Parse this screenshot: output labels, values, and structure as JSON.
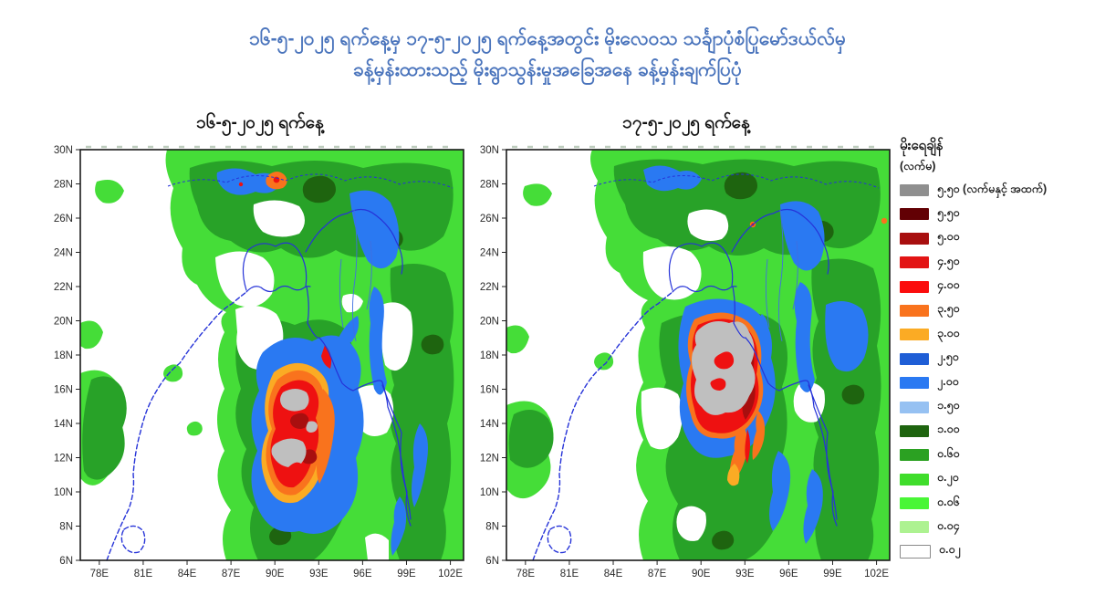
{
  "page": {
    "background": "#ffffff"
  },
  "title": {
    "line1": "၁၆-၅-၂၀၂၅ ရက်နေ့မှ ၁၇-၅-၂၀၂၅ ရက်နေ့အတွင်း မိုးလေဝသ သင်္ချာပုံစံပြုမော်ဒယ်လ်မှ",
    "line2": "ခန့်မှန်းထားသည့် မိုးရွာသွန်းမှုအခြေအနေ ခန့်မှန်းချက်ပြပုံ",
    "color": "#4a74bc"
  },
  "maps": [
    {
      "title": "၁၆-၅-၂၀၂၅ ရက်နေ့"
    },
    {
      "title": "၁၇-၅-၂၀၂၅ ရက်နေ့"
    }
  ],
  "axes": {
    "x_tick_labels": [
      "78E",
      "81E",
      "84E",
      "87E",
      "90E",
      "93E",
      "96E",
      "99E",
      "102E"
    ],
    "y_tick_labels": [
      "30N",
      "28N",
      "26N",
      "24N",
      "22N",
      "20N",
      "18N",
      "16N",
      "14N",
      "12N",
      "10N",
      "8N",
      "6N"
    ]
  },
  "legend": {
    "title_line1": "မိုးရေချိန်",
    "title_line2": "(လက်မ)",
    "items": [
      {
        "label": "၅.၅၀ (လက်မနှင့် အထက်)",
        "value": "5.50+",
        "color": "#8f8f8f"
      },
      {
        "label": "၅.၅၀",
        "value": "5.50",
        "color": "#620004"
      },
      {
        "label": "၅.၀၀",
        "value": "5.00",
        "color": "#a80f0f"
      },
      {
        "label": "၄.၅၀",
        "value": "4.50",
        "color": "#e31414"
      },
      {
        "label": "၄.၀၀",
        "value": "4.00",
        "color": "#fb0d0d"
      },
      {
        "label": "၃.၅၀",
        "value": "3.50",
        "color": "#f9731d"
      },
      {
        "label": "၃.၀၀",
        "value": "3.00",
        "color": "#fbab24"
      },
      {
        "label": "၂.၅၀",
        "value": "2.50",
        "color": "#1f5ed6"
      },
      {
        "label": "၂.၀၀",
        "value": "2.00",
        "color": "#2a79f2"
      },
      {
        "label": "၁.၅၀",
        "value": "1.50",
        "color": "#96c1f2"
      },
      {
        "label": "၁.၀၀",
        "value": "1.00",
        "color": "#1e640f"
      },
      {
        "label": "၀.၆၀",
        "value": "0.60",
        "color": "#2ba122"
      },
      {
        "label": "၀.၂၀",
        "value": "0.20",
        "color": "#3fdd2b"
      },
      {
        "label": "၀.၀၆",
        "value": "0.06",
        "color": "#49f636"
      },
      {
        "label": "၀.၀၄",
        "value": "0.04",
        "color": "#adf291"
      },
      {
        "label": "၀.၀၂",
        "value": "0.02",
        "color": "#ffffff",
        "border": true
      }
    ]
  },
  "palette": {
    "map_gray": "#bfbfbf",
    "maroon": "#620004",
    "darkred": "#a80f0f",
    "red": "#ee1111",
    "orange": "#f9731d",
    "amber": "#fbab24",
    "blue": "#1f5ed6",
    "blue2": "#2a79f2",
    "lightblue": "#96c1f2",
    "darkgreen": "#1e640f",
    "green": "#28a228",
    "green2": "#45dd38",
    "coast": "#2633d8",
    "river": "#3f6fe0"
  },
  "chart_data": [
    {
      "type": "heatmap",
      "title": "၁၆-၅-၂၀၂၅ ရက်နေ့",
      "variable": "forecast rainfall",
      "units": "inches (လက်မ)",
      "x_ticks": [
        "78E",
        "81E",
        "84E",
        "87E",
        "90E",
        "93E",
        "96E",
        "99E",
        "102E"
      ],
      "y_ticks": [
        "30N",
        "28N",
        "26N",
        "24N",
        "22N",
        "20N",
        "18N",
        "16N",
        "14N",
        "12N",
        "10N",
        "8N",
        "6N"
      ],
      "lon_range_deg_e": [
        76.7,
        102.9
      ],
      "lat_range_deg_n": [
        6,
        30
      ],
      "levels_inches": [
        0.02,
        0.04,
        0.06,
        0.2,
        0.6,
        1.0,
        1.5,
        2.0,
        2.5,
        3.0,
        3.5,
        4.0,
        4.5,
        5.0,
        5.5
      ],
      "legend_position": "right",
      "grid": false,
      "features": [
        {
          "name": "storm-core",
          "center_lon_e": 91.5,
          "center_lat_n": 13.5,
          "description": "Cyclonic rain system over the Bay of Bengal; gray cores above 5.50 in near 90.5–92E / 11.5–15N surrounded by red, orange and blue rain bands"
        },
        {
          "name": "broad-rain",
          "description": "Widespread green (0.06–1.00 in) rain over NE India, Bangladesh and Myanmar with embedded blue patches (1.5–2.5 in); white (<0.02 in) over west Bay of Bengal and interior India"
        }
      ]
    },
    {
      "type": "heatmap",
      "title": "၁၇-၅-၂၀၂၅ ရက်နေ့",
      "variable": "forecast rainfall",
      "units": "inches (လက်မ)",
      "x_ticks": [
        "78E",
        "81E",
        "84E",
        "87E",
        "90E",
        "93E",
        "96E",
        "99E",
        "102E"
      ],
      "y_ticks": [
        "30N",
        "28N",
        "26N",
        "24N",
        "22N",
        "20N",
        "18N",
        "16N",
        "14N",
        "12N",
        "10N",
        "8N",
        "6N"
      ],
      "lon_range_deg_e": [
        76.7,
        102.9
      ],
      "lat_range_deg_n": [
        6,
        30
      ],
      "levels_inches": [
        0.02,
        0.04,
        0.06,
        0.2,
        0.6,
        1.0,
        1.5,
        2.0,
        2.5,
        3.0,
        3.5,
        4.0,
        4.5,
        5.0,
        5.5
      ],
      "legend_position": "right",
      "grid": false,
      "features": [
        {
          "name": "storm-core",
          "center_lon_e": 91.3,
          "center_lat_n": 17.8,
          "description": "Storm moved north: large solid gray core above 5.50 in near 90–92.5E / 16–19.5N off the Rakhine coast, ringed by dark red, orange and blue bands with orange/red arcs to the southeast"
        },
        {
          "name": "broad-rain",
          "description": "Extensive green rain field over Myanmar and NE India with blue streaks along 95–100E; white over west Bay of Bengal and peninsular India"
        }
      ]
    }
  ]
}
